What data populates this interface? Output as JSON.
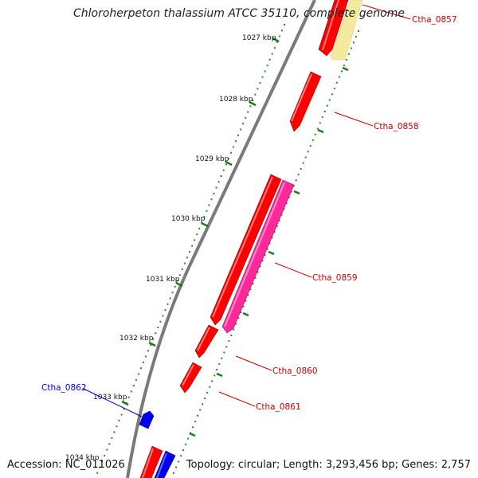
{
  "title": "Chloroherpeton thalassium ATCC 35110, complete genome",
  "accession": "Accession: NC_011026",
  "summary": "Topology: circular; Length: 3,293,456 bp; Genes: 2,757",
  "kbp_labels": [
    "1027 kbp",
    "1028 kbp",
    "1029 kbp",
    "1030 kbp",
    "1031 kbp",
    "1032 kbp",
    "1033 kbp",
    "1034 kbp"
  ],
  "genes": [
    {
      "name": "Ctha_0857",
      "color": "#cc0000",
      "strand": "forward"
    },
    {
      "name": "Ctha_0858",
      "color": "#cc0000",
      "strand": "forward"
    },
    {
      "name": "Ctha_0859",
      "color": "#cc0000",
      "strand": "forward"
    },
    {
      "name": "Ctha_0860",
      "color": "#cc0000",
      "strand": "forward"
    },
    {
      "name": "Ctha_0861",
      "color": "#cc0000",
      "strand": "forward"
    },
    {
      "name": "Ctha_0862",
      "color": "#0000cc",
      "strand": "reverse"
    }
  ],
  "colors": {
    "cds": "#ff0000",
    "cds_alt": "#ff3399",
    "cds_pale": "#f3e9a0",
    "reverse": "#0000ee",
    "backbone": "#888888",
    "tick": "#228b22"
  }
}
